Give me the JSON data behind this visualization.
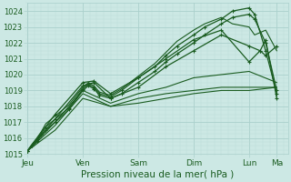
{
  "xlabel": "Pression niveau de la mer( hPa )",
  "ylim": [
    1015.0,
    1024.5
  ],
  "xlim": [
    0.0,
    4.7
  ],
  "yticks": [
    1015,
    1016,
    1017,
    1018,
    1019,
    1020,
    1021,
    1022,
    1023,
    1024
  ],
  "bg_color": "#cce8e4",
  "grid_major_color": "#aad0cc",
  "grid_minor_color": "#bbddd8",
  "line_color": "#1a5c20",
  "xtick_positions": [
    0.0,
    1.0,
    2.0,
    3.0,
    4.0,
    4.5
  ],
  "xtick_labels": [
    "Jeu",
    "Ven",
    "Sam",
    "Dim",
    "Lun",
    "Ma"
  ],
  "series": [
    {
      "x": [
        0.0,
        0.08,
        0.17,
        0.25,
        0.33,
        0.5,
        0.75,
        1.0,
        1.1,
        1.2,
        1.3,
        1.5,
        1.7,
        2.0,
        2.3,
        2.5,
        2.7,
        3.0,
        3.2,
        3.5,
        3.7,
        4.0,
        4.1,
        4.3,
        4.5
      ],
      "y": [
        1015.2,
        1015.5,
        1015.8,
        1016.2,
        1016.5,
        1017.0,
        1017.8,
        1019.0,
        1019.3,
        1019.1,
        1018.7,
        1018.5,
        1018.8,
        1019.5,
        1020.2,
        1020.8,
        1021.3,
        1022.0,
        1022.5,
        1023.2,
        1023.6,
        1023.8,
        1023.5,
        1022.0,
        1019.0
      ],
      "marker": true,
      "lw": 0.9
    },
    {
      "x": [
        0.0,
        0.08,
        0.17,
        0.25,
        0.33,
        0.5,
        0.75,
        1.0,
        1.1,
        1.2,
        1.3,
        1.5,
        1.7,
        2.0,
        2.3,
        2.5,
        2.7,
        3.0,
        3.2,
        3.5,
        3.7,
        4.0,
        4.1,
        4.3,
        4.5
      ],
      "y": [
        1015.2,
        1015.5,
        1015.9,
        1016.3,
        1016.7,
        1017.2,
        1017.9,
        1019.1,
        1019.4,
        1019.2,
        1018.8,
        1018.6,
        1019.0,
        1019.8,
        1020.5,
        1021.2,
        1021.8,
        1022.5,
        1023.0,
        1023.5,
        1024.0,
        1024.2,
        1023.8,
        1021.5,
        1018.8
      ],
      "marker": true,
      "lw": 0.9
    },
    {
      "x": [
        0.0,
        0.08,
        0.17,
        0.25,
        0.33,
        0.5,
        0.75,
        1.0,
        1.1,
        1.2,
        1.3,
        1.5,
        1.7,
        2.0,
        2.3,
        2.5,
        2.7,
        3.0,
        3.2,
        3.5,
        3.7,
        4.0,
        4.1,
        4.3,
        4.5
      ],
      "y": [
        1015.2,
        1015.6,
        1016.0,
        1016.4,
        1016.9,
        1017.4,
        1018.1,
        1019.2,
        1019.5,
        1019.3,
        1018.9,
        1018.7,
        1019.1,
        1019.9,
        1020.7,
        1021.4,
        1022.1,
        1022.8,
        1023.2,
        1023.6,
        1023.2,
        1023.0,
        1022.5,
        1022.8,
        1021.5
      ],
      "marker": false,
      "lw": 0.8
    },
    {
      "x": [
        0.0,
        0.5,
        1.0,
        1.5,
        2.0,
        2.5,
        3.0,
        3.5,
        4.0,
        4.5
      ],
      "y": [
        1015.2,
        1017.0,
        1019.0,
        1018.2,
        1018.8,
        1019.2,
        1019.8,
        1020.0,
        1020.2,
        1019.5
      ],
      "marker": false,
      "lw": 0.8
    },
    {
      "x": [
        0.0,
        0.5,
        1.0,
        1.5,
        2.0,
        2.5,
        3.0,
        3.5,
        4.0,
        4.5
      ],
      "y": [
        1015.2,
        1016.8,
        1018.8,
        1018.0,
        1018.5,
        1018.8,
        1019.0,
        1019.2,
        1019.2,
        1019.2
      ],
      "marker": false,
      "lw": 0.8
    },
    {
      "x": [
        0.0,
        0.5,
        1.0,
        1.5,
        2.0,
        2.5,
        3.0,
        3.5,
        4.0,
        4.5
      ],
      "y": [
        1015.2,
        1016.5,
        1018.5,
        1018.0,
        1018.2,
        1018.5,
        1018.8,
        1019.0,
        1019.0,
        1019.2
      ],
      "marker": false,
      "lw": 0.8
    },
    {
      "x": [
        0.0,
        0.5,
        1.0,
        1.2,
        1.5,
        2.0,
        2.5,
        3.0,
        3.5,
        4.0,
        4.2,
        4.3,
        4.5
      ],
      "y": [
        1015.2,
        1017.2,
        1019.3,
        1019.5,
        1018.5,
        1019.2,
        1020.5,
        1021.5,
        1022.5,
        1021.8,
        1021.5,
        1021.2,
        1021.8
      ],
      "marker": true,
      "lw": 0.9
    },
    {
      "x": [
        0.0,
        0.5,
        1.0,
        1.2,
        1.5,
        2.0,
        2.5,
        3.0,
        3.5,
        4.0,
        4.2,
        4.3,
        4.5
      ],
      "y": [
        1015.2,
        1017.5,
        1019.5,
        1019.6,
        1018.8,
        1019.8,
        1021.0,
        1022.2,
        1022.8,
        1020.8,
        1021.5,
        1022.2,
        1018.5
      ],
      "marker": true,
      "lw": 0.9
    }
  ]
}
